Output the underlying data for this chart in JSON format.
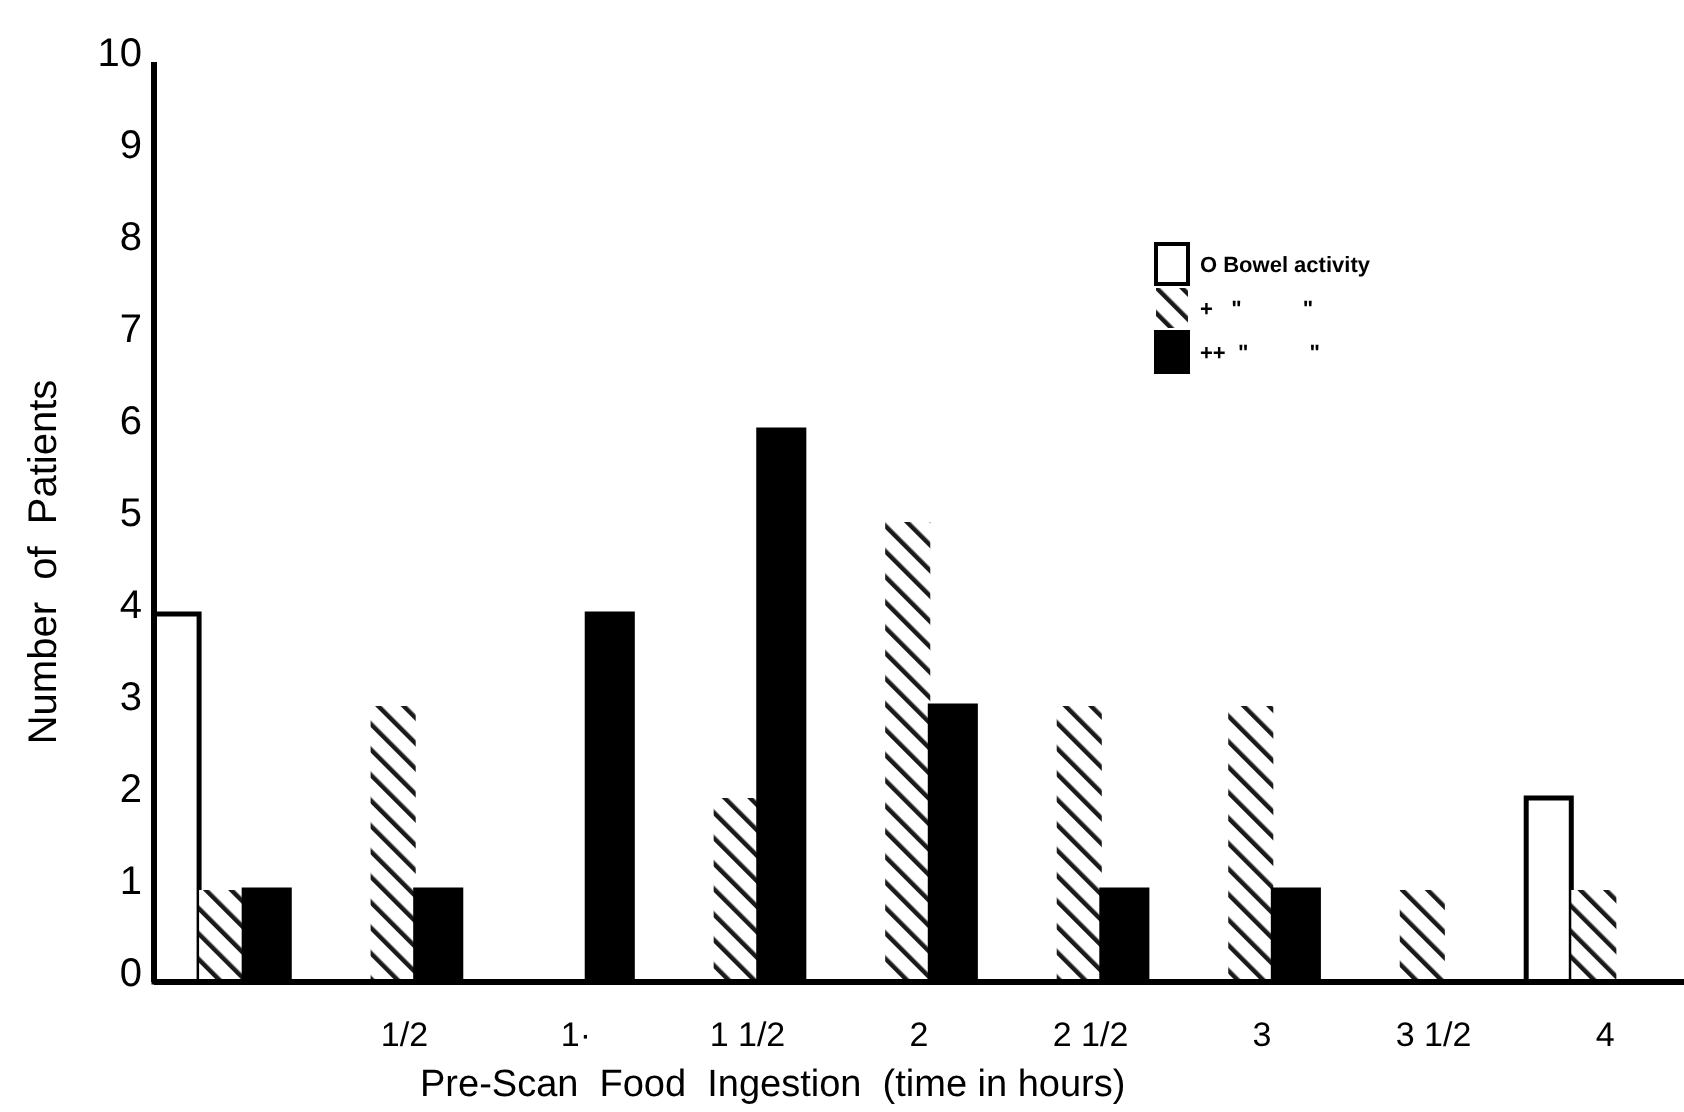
{
  "chart_data": {
    "type": "bar",
    "xlabel": "Pre-Scan  Food  Ingestion  (time in hours)",
    "ylabel": "Number  of  Patients",
    "categories": [
      null,
      "1/2",
      "1·",
      "1 1/2",
      "2",
      "2 1/2",
      "3",
      "3 1/2",
      "4"
    ],
    "series": [
      {
        "name": "O Bowel activity",
        "color": "#ffffff",
        "values": [
          4,
          0,
          0,
          0,
          0,
          0,
          0,
          0,
          2
        ]
      },
      {
        "name": "+   \"          \"",
        "color": "#1a1a1a",
        "values": [
          1,
          3,
          0,
          2,
          5,
          3,
          3,
          1,
          1
        ]
      },
      {
        "name": "++  \"          \"",
        "color": "#000000",
        "values": [
          1,
          1,
          4,
          6,
          3,
          1,
          1,
          0,
          0
        ]
      }
    ],
    "ylim": [
      0,
      10
    ],
    "yticks": [
      0,
      1,
      2,
      3,
      4,
      5,
      6,
      7,
      8,
      9,
      10
    ],
    "grid": false,
    "legend": "top right"
  }
}
